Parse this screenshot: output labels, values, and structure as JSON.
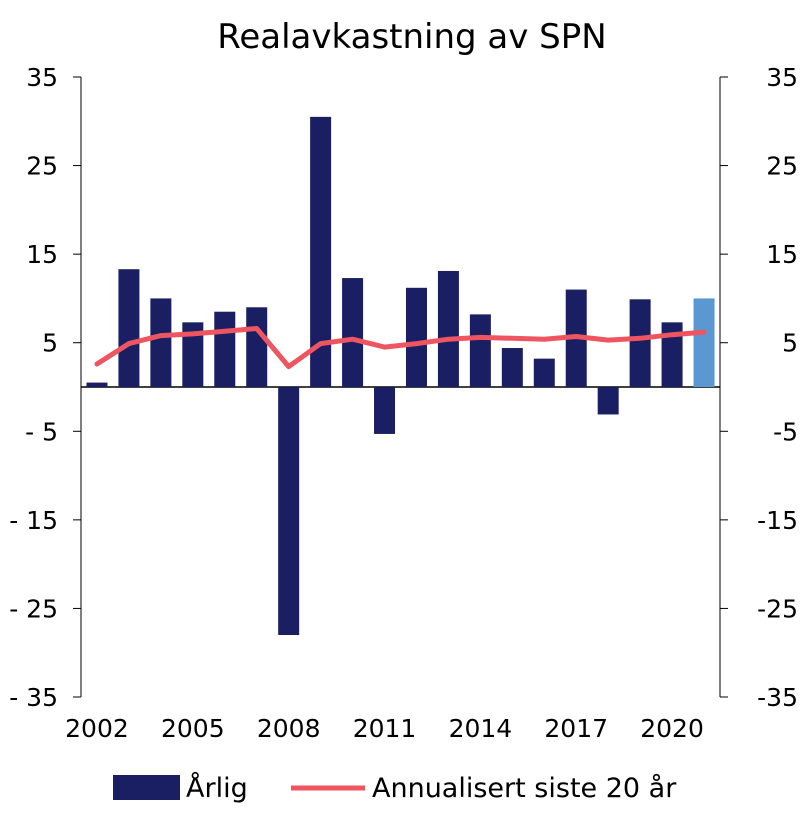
{
  "chart_data": {
    "type": "bar",
    "title": "Realavkastning av SPN",
    "years": [
      2002,
      2003,
      2004,
      2005,
      2006,
      2007,
      2008,
      2009,
      2010,
      2011,
      2012,
      2013,
      2014,
      2015,
      2016,
      2017,
      2018,
      2019,
      2020,
      2021
    ],
    "x_tick_labels": [
      "2002",
      "2005",
      "2008",
      "2011",
      "2014",
      "2017",
      "2020"
    ],
    "y_tick_labels_left": [
      "35",
      "25",
      "15",
      "5",
      "- 5",
      "- 15",
      "- 25",
      "- 35"
    ],
    "y_tick_labels_right": [
      "35",
      "25",
      "15",
      "5",
      "-5",
      "-15",
      "-25",
      "-35"
    ],
    "y_ticks": [
      35,
      25,
      15,
      5,
      -5,
      -15,
      -25,
      -35
    ],
    "ylim": [
      -35,
      35
    ],
    "series": [
      {
        "name": "Årlig",
        "type": "bar",
        "color": "#1a1f63",
        "highlight_color": "#5b97d1",
        "highlight_index": 19,
        "values": [
          0.5,
          13.3,
          10.0,
          7.3,
          8.5,
          9.0,
          -28.0,
          30.5,
          12.3,
          -5.3,
          11.2,
          13.1,
          8.2,
          4.4,
          3.2,
          11.0,
          -3.1,
          9.9,
          7.3,
          10.0
        ]
      },
      {
        "name": "Annualisert siste 20 år",
        "type": "line",
        "color": "#ee5560",
        "values": [
          2.6,
          4.9,
          5.8,
          6.0,
          6.3,
          6.6,
          2.3,
          4.9,
          5.4,
          4.5,
          4.9,
          5.4,
          5.6,
          5.5,
          5.4,
          5.7,
          5.3,
          5.5,
          5.9,
          6.2
        ]
      }
    ],
    "grid": false,
    "legend_position": "bottom"
  }
}
